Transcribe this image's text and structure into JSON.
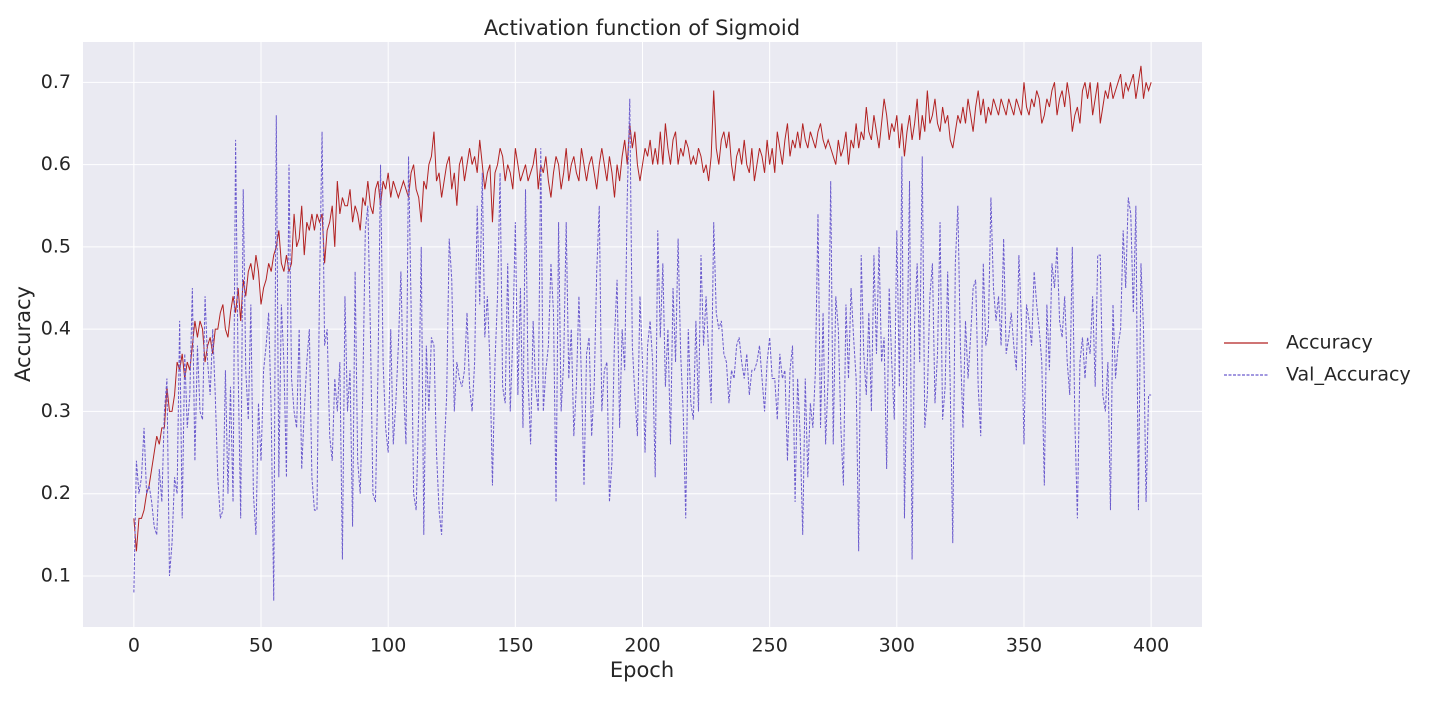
{
  "chart_data": {
    "type": "line",
    "title": "Activation function of Sigmoid",
    "x_label": "Epoch",
    "y_label": "Accuracy",
    "x": [
      0,
      1,
      2,
      3,
      4,
      5,
      6,
      7,
      8,
      9,
      10,
      11,
      12,
      13,
      14,
      15,
      16,
      17,
      18,
      19,
      20,
      21,
      22,
      23,
      24,
      25,
      26,
      27,
      28,
      29,
      30,
      31,
      32,
      33,
      34,
      35,
      36,
      37,
      38,
      39,
      40,
      41,
      42,
      43,
      44,
      45,
      46,
      47,
      48,
      49,
      50,
      51,
      52,
      53,
      54,
      55,
      56,
      57,
      58,
      59,
      60,
      61,
      62,
      63,
      64,
      65,
      66,
      67,
      68,
      69,
      70,
      71,
      72,
      73,
      74,
      75,
      76,
      77,
      78,
      79,
      80,
      81,
      82,
      83,
      84,
      85,
      86,
      87,
      88,
      89,
      90,
      91,
      92,
      93,
      94,
      95,
      96,
      97,
      98,
      99,
      100,
      101,
      102,
      103,
      104,
      105,
      106,
      107,
      108,
      109,
      110,
      111,
      112,
      113,
      114,
      115,
      116,
      117,
      118,
      119,
      120,
      121,
      122,
      123,
      124,
      125,
      126,
      127,
      128,
      129,
      130,
      131,
      132,
      133,
      134,
      135,
      136,
      137,
      138,
      139,
      140,
      141,
      142,
      143,
      144,
      145,
      146,
      147,
      148,
      149,
      150,
      151,
      152,
      153,
      154,
      155,
      156,
      157,
      158,
      159,
      160,
      161,
      162,
      163,
      164,
      165,
      166,
      167,
      168,
      169,
      170,
      171,
      172,
      173,
      174,
      175,
      176,
      177,
      178,
      179,
      180,
      181,
      182,
      183,
      184,
      185,
      186,
      187,
      188,
      189,
      190,
      191,
      192,
      193,
      194,
      195,
      196,
      197,
      198,
      199,
      200,
      201,
      202,
      203,
      204,
      205,
      206,
      207,
      208,
      209,
      210,
      211,
      212,
      213,
      214,
      215,
      216,
      217,
      218,
      219,
      220,
      221,
      222,
      223,
      224,
      225,
      226,
      227,
      228,
      229,
      230,
      231,
      232,
      233,
      234,
      235,
      236,
      237,
      238,
      239,
      240,
      241,
      242,
      243,
      244,
      245,
      246,
      247,
      248,
      249,
      250,
      251,
      252,
      253,
      254,
      255,
      256,
      257,
      258,
      259,
      260,
      261,
      262,
      263,
      264,
      265,
      266,
      267,
      268,
      269,
      270,
      271,
      272,
      273,
      274,
      275,
      276,
      277,
      278,
      279,
      280,
      281,
      282,
      283,
      284,
      285,
      286,
      287,
      288,
      289,
      290,
      291,
      292,
      293,
      294,
      295,
      296,
      297,
      298,
      299,
      300,
      301,
      302,
      303,
      304,
      305,
      306,
      307,
      308,
      309,
      310,
      311,
      312,
      313,
      314,
      315,
      316,
      317,
      318,
      319,
      320,
      321,
      322,
      323,
      324,
      325,
      326,
      327,
      328,
      329,
      330,
      331,
      332,
      333,
      334,
      335,
      336,
      337,
      338,
      339,
      340,
      341,
      342,
      343,
      344,
      345,
      346,
      347,
      348,
      349,
      350,
      351,
      352,
      353,
      354,
      355,
      356,
      357,
      358,
      359,
      360,
      361,
      362,
      363,
      364,
      365,
      366,
      367,
      368,
      369,
      370,
      371,
      372,
      373,
      374,
      375,
      376,
      377,
      378,
      379,
      380,
      381,
      382,
      383,
      384,
      385,
      386,
      387,
      388,
      389,
      390,
      391,
      392,
      393,
      394,
      395,
      396,
      397,
      398,
      399,
      400
    ],
    "series": [
      {
        "name": "Accuracy",
        "color": "#b22222",
        "linestyle": "solid",
        "values": [
          0.17,
          0.13,
          0.17,
          0.17,
          0.18,
          0.2,
          0.21,
          0.23,
          0.25,
          0.27,
          0.26,
          0.28,
          0.28,
          0.33,
          0.3,
          0.3,
          0.32,
          0.36,
          0.35,
          0.37,
          0.34,
          0.36,
          0.35,
          0.38,
          0.41,
          0.39,
          0.41,
          0.4,
          0.36,
          0.38,
          0.39,
          0.37,
          0.4,
          0.4,
          0.42,
          0.43,
          0.4,
          0.39,
          0.42,
          0.44,
          0.42,
          0.45,
          0.41,
          0.46,
          0.44,
          0.47,
          0.48,
          0.46,
          0.49,
          0.47,
          0.43,
          0.45,
          0.46,
          0.48,
          0.47,
          0.49,
          0.5,
          0.52,
          0.48,
          0.47,
          0.49,
          0.47,
          0.48,
          0.54,
          0.5,
          0.51,
          0.55,
          0.49,
          0.53,
          0.52,
          0.54,
          0.52,
          0.54,
          0.53,
          0.54,
          0.48,
          0.52,
          0.53,
          0.55,
          0.5,
          0.58,
          0.54,
          0.56,
          0.55,
          0.55,
          0.57,
          0.53,
          0.55,
          0.54,
          0.52,
          0.56,
          0.55,
          0.58,
          0.55,
          0.54,
          0.57,
          0.58,
          0.55,
          0.58,
          0.57,
          0.59,
          0.56,
          0.58,
          0.57,
          0.56,
          0.57,
          0.58,
          0.57,
          0.56,
          0.59,
          0.6,
          0.57,
          0.56,
          0.53,
          0.58,
          0.57,
          0.6,
          0.61,
          0.64,
          0.58,
          0.59,
          0.56,
          0.58,
          0.6,
          0.61,
          0.57,
          0.59,
          0.55,
          0.6,
          0.61,
          0.58,
          0.6,
          0.62,
          0.6,
          0.61,
          0.59,
          0.63,
          0.6,
          0.57,
          0.59,
          0.6,
          0.53,
          0.59,
          0.6,
          0.62,
          0.61,
          0.58,
          0.6,
          0.59,
          0.57,
          0.62,
          0.6,
          0.58,
          0.59,
          0.6,
          0.58,
          0.59,
          0.6,
          0.62,
          0.57,
          0.6,
          0.59,
          0.61,
          0.58,
          0.56,
          0.59,
          0.61,
          0.6,
          0.57,
          0.59,
          0.62,
          0.58,
          0.6,
          0.61,
          0.59,
          0.58,
          0.62,
          0.6,
          0.58,
          0.6,
          0.61,
          0.59,
          0.57,
          0.6,
          0.62,
          0.6,
          0.58,
          0.61,
          0.59,
          0.56,
          0.6,
          0.58,
          0.61,
          0.63,
          0.6,
          0.65,
          0.62,
          0.64,
          0.6,
          0.58,
          0.6,
          0.62,
          0.61,
          0.63,
          0.6,
          0.62,
          0.6,
          0.64,
          0.6,
          0.65,
          0.62,
          0.6,
          0.63,
          0.64,
          0.6,
          0.62,
          0.61,
          0.63,
          0.62,
          0.6,
          0.61,
          0.6,
          0.62,
          0.61,
          0.59,
          0.6,
          0.58,
          0.61,
          0.69,
          0.62,
          0.6,
          0.63,
          0.64,
          0.62,
          0.64,
          0.6,
          0.58,
          0.61,
          0.62,
          0.6,
          0.63,
          0.6,
          0.59,
          0.62,
          0.58,
          0.6,
          0.62,
          0.61,
          0.59,
          0.63,
          0.6,
          0.62,
          0.59,
          0.64,
          0.62,
          0.6,
          0.63,
          0.65,
          0.61,
          0.63,
          0.62,
          0.64,
          0.62,
          0.65,
          0.63,
          0.62,
          0.64,
          0.63,
          0.62,
          0.64,
          0.65,
          0.63,
          0.62,
          0.63,
          0.62,
          0.61,
          0.6,
          0.63,
          0.61,
          0.62,
          0.64,
          0.6,
          0.63,
          0.62,
          0.65,
          0.62,
          0.64,
          0.63,
          0.67,
          0.64,
          0.63,
          0.66,
          0.64,
          0.62,
          0.65,
          0.68,
          0.66,
          0.63,
          0.65,
          0.64,
          0.66,
          0.62,
          0.65,
          0.61,
          0.64,
          0.66,
          0.63,
          0.65,
          0.68,
          0.63,
          0.66,
          0.64,
          0.69,
          0.65,
          0.66,
          0.68,
          0.65,
          0.64,
          0.67,
          0.65,
          0.66,
          0.63,
          0.62,
          0.64,
          0.66,
          0.65,
          0.67,
          0.65,
          0.68,
          0.66,
          0.64,
          0.67,
          0.69,
          0.66,
          0.68,
          0.65,
          0.67,
          0.66,
          0.68,
          0.67,
          0.66,
          0.68,
          0.67,
          0.66,
          0.68,
          0.67,
          0.66,
          0.68,
          0.67,
          0.66,
          0.7,
          0.67,
          0.66,
          0.68,
          0.67,
          0.69,
          0.68,
          0.65,
          0.66,
          0.68,
          0.67,
          0.69,
          0.7,
          0.66,
          0.68,
          0.69,
          0.67,
          0.7,
          0.68,
          0.64,
          0.66,
          0.67,
          0.65,
          0.69,
          0.7,
          0.68,
          0.7,
          0.66,
          0.68,
          0.7,
          0.65,
          0.67,
          0.69,
          0.68,
          0.7,
          0.68,
          0.69,
          0.7,
          0.71,
          0.68,
          0.7,
          0.69,
          0.7,
          0.71,
          0.68,
          0.7,
          0.72,
          0.68,
          0.7,
          0.69,
          0.7
        ]
      },
      {
        "name": "Val_Accuracy",
        "color": "#6a5acd",
        "linestyle": "dashed",
        "values": [
          0.08,
          0.24,
          0.2,
          0.22,
          0.28,
          0.2,
          0.21,
          0.19,
          0.16,
          0.15,
          0.23,
          0.19,
          0.3,
          0.34,
          0.1,
          0.14,
          0.22,
          0.2,
          0.41,
          0.17,
          0.37,
          0.28,
          0.32,
          0.45,
          0.24,
          0.38,
          0.3,
          0.29,
          0.44,
          0.36,
          0.32,
          0.4,
          0.32,
          0.22,
          0.17,
          0.18,
          0.35,
          0.2,
          0.33,
          0.19,
          0.63,
          0.35,
          0.17,
          0.57,
          0.35,
          0.29,
          0.43,
          0.2,
          0.15,
          0.31,
          0.24,
          0.35,
          0.38,
          0.42,
          0.3,
          0.07,
          0.66,
          0.22,
          0.43,
          0.36,
          0.22,
          0.6,
          0.34,
          0.3,
          0.28,
          0.4,
          0.23,
          0.3,
          0.36,
          0.4,
          0.22,
          0.18,
          0.18,
          0.45,
          0.64,
          0.38,
          0.4,
          0.27,
          0.24,
          0.34,
          0.3,
          0.36,
          0.12,
          0.44,
          0.3,
          0.35,
          0.16,
          0.47,
          0.24,
          0.2,
          0.32,
          0.52,
          0.55,
          0.4,
          0.2,
          0.19,
          0.35,
          0.6,
          0.36,
          0.28,
          0.25,
          0.4,
          0.26,
          0.31,
          0.38,
          0.47,
          0.33,
          0.26,
          0.61,
          0.43,
          0.2,
          0.18,
          0.3,
          0.5,
          0.15,
          0.38,
          0.3,
          0.39,
          0.38,
          0.25,
          0.18,
          0.15,
          0.25,
          0.32,
          0.51,
          0.46,
          0.3,
          0.36,
          0.34,
          0.33,
          0.35,
          0.42,
          0.33,
          0.3,
          0.36,
          0.55,
          0.43,
          0.59,
          0.39,
          0.44,
          0.36,
          0.21,
          0.36,
          0.44,
          0.59,
          0.33,
          0.31,
          0.48,
          0.3,
          0.39,
          0.53,
          0.32,
          0.45,
          0.28,
          0.57,
          0.34,
          0.26,
          0.41,
          0.33,
          0.3,
          0.62,
          0.3,
          0.35,
          0.38,
          0.48,
          0.42,
          0.19,
          0.53,
          0.3,
          0.36,
          0.53,
          0.34,
          0.4,
          0.27,
          0.33,
          0.44,
          0.34,
          0.21,
          0.37,
          0.39,
          0.27,
          0.33,
          0.47,
          0.55,
          0.3,
          0.35,
          0.36,
          0.19,
          0.24,
          0.39,
          0.46,
          0.28,
          0.4,
          0.35,
          0.56,
          0.68,
          0.38,
          0.32,
          0.27,
          0.44,
          0.36,
          0.25,
          0.38,
          0.41,
          0.36,
          0.22,
          0.52,
          0.39,
          0.48,
          0.33,
          0.4,
          0.26,
          0.45,
          0.36,
          0.51,
          0.37,
          0.3,
          0.17,
          0.4,
          0.31,
          0.29,
          0.41,
          0.3,
          0.49,
          0.38,
          0.44,
          0.37,
          0.31,
          0.53,
          0.42,
          0.4,
          0.41,
          0.37,
          0.36,
          0.31,
          0.35,
          0.34,
          0.38,
          0.39,
          0.36,
          0.34,
          0.37,
          0.32,
          0.35,
          0.35,
          0.36,
          0.38,
          0.34,
          0.3,
          0.36,
          0.39,
          0.34,
          0.34,
          0.29,
          0.37,
          0.34,
          0.35,
          0.24,
          0.35,
          0.38,
          0.19,
          0.34,
          0.27,
          0.15,
          0.34,
          0.22,
          0.31,
          0.28,
          0.35,
          0.54,
          0.28,
          0.42,
          0.26,
          0.34,
          0.58,
          0.26,
          0.44,
          0.4,
          0.28,
          0.21,
          0.43,
          0.34,
          0.45,
          0.39,
          0.34,
          0.13,
          0.49,
          0.37,
          0.32,
          0.42,
          0.3,
          0.49,
          0.37,
          0.5,
          0.36,
          0.39,
          0.23,
          0.45,
          0.36,
          0.29,
          0.52,
          0.33,
          0.61,
          0.17,
          0.36,
          0.58,
          0.12,
          0.41,
          0.48,
          0.36,
          0.61,
          0.28,
          0.32,
          0.44,
          0.48,
          0.31,
          0.37,
          0.53,
          0.29,
          0.33,
          0.47,
          0.33,
          0.14,
          0.48,
          0.55,
          0.38,
          0.28,
          0.41,
          0.34,
          0.39,
          0.45,
          0.46,
          0.33,
          0.27,
          0.48,
          0.38,
          0.4,
          0.56,
          0.45,
          0.41,
          0.44,
          0.38,
          0.51,
          0.37,
          0.39,
          0.42,
          0.38,
          0.35,
          0.49,
          0.41,
          0.26,
          0.43,
          0.41,
          0.38,
          0.47,
          0.43,
          0.4,
          0.36,
          0.21,
          0.43,
          0.35,
          0.48,
          0.45,
          0.5,
          0.41,
          0.39,
          0.44,
          0.36,
          0.32,
          0.5,
          0.29,
          0.17,
          0.36,
          0.39,
          0.34,
          0.39,
          0.37,
          0.44,
          0.33,
          0.49,
          0.49,
          0.32,
          0.3,
          0.36,
          0.18,
          0.43,
          0.34,
          0.38,
          0.4,
          0.52,
          0.45,
          0.56,
          0.54,
          0.42,
          0.55,
          0.18,
          0.48,
          0.4,
          0.19,
          0.32,
          0.32
        ]
      }
    ],
    "xlim": [
      -20,
      420
    ],
    "ylim": [
      0.038,
      0.749
    ],
    "xticks": [
      0,
      50,
      100,
      150,
      200,
      250,
      300,
      350,
      400
    ],
    "yticks": [
      0.1,
      0.2,
      0.3,
      0.4,
      0.5,
      0.6,
      0.7
    ],
    "grid": true,
    "legend": "outside right"
  }
}
